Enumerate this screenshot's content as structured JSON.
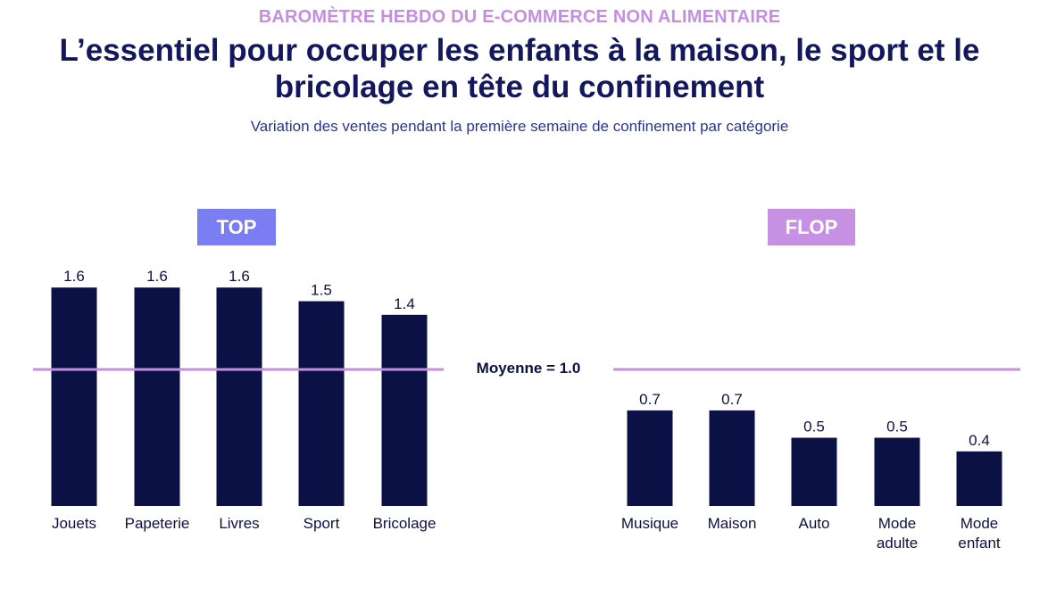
{
  "header": {
    "kicker": "BAROMÈTRE HEBDO DU E-COMMERCE NON ALIMENTAIRE",
    "title": "L’essentiel pour occuper les enfants à la maison, le sport et le bricolage en tête du confinement",
    "subtitle": "Variation des ventes pendant la première semaine de confinement par catégorie"
  },
  "badges": {
    "top": "TOP",
    "flop": "FLOP"
  },
  "colors": {
    "bar": "#0c1145",
    "mean_line": "#c48fe0",
    "kicker": "#c48fe0",
    "title": "#13185e",
    "badge_top": "#7b7ef2",
    "badge_flop": "#c690e3"
  },
  "chart_data": [
    {
      "type": "bar",
      "name": "TOP",
      "categories": [
        "Jouets",
        "Papeterie",
        "Livres",
        "Sport",
        "Bricolage"
      ],
      "values": [
        1.6,
        1.6,
        1.6,
        1.5,
        1.4
      ],
      "mean": 1.0,
      "mean_label": "Moyenne = 1.0",
      "ylim": [
        0,
        1.8
      ]
    },
    {
      "type": "bar",
      "name": "FLOP",
      "categories": [
        "Musique",
        "Maison",
        "Auto",
        "Mode adulte",
        "Mode enfant"
      ],
      "values": [
        0.7,
        0.7,
        0.5,
        0.5,
        0.4
      ],
      "mean": 1.0,
      "mean_label": "Moyenne = 1.0",
      "ylim": [
        0,
        1.8
      ]
    }
  ]
}
